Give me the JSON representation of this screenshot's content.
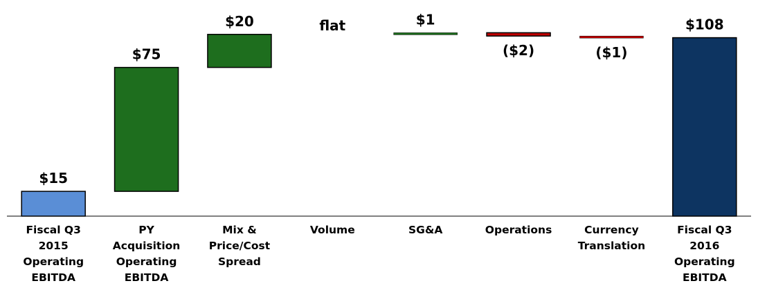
{
  "chart_data": {
    "type": "waterfall",
    "categories": [
      "Fiscal Q3\n2015\nOperating\nEBITDA",
      "PY\nAcquisition\nOperating\nEBITDA",
      "Mix &\nPrice/Cost\nSpread",
      "Volume",
      "SG&A",
      "Operations",
      "Currency\nTranslation",
      "Fiscal Q3\n2016\nOperating\nEBITDA"
    ],
    "values": [
      15,
      75,
      20,
      0,
      1,
      -2,
      -1,
      108
    ],
    "value_labels": [
      "$15",
      "$75",
      "$20",
      "flat",
      "$1",
      "($2)",
      "($1)",
      "$108"
    ],
    "totals": [
      0,
      7
    ],
    "colors": [
      "#5a8ed6",
      "#1e6e1e",
      "#1e6e1e",
      "#1e6e1e",
      "#1e6e1e",
      "#c00000",
      "#c00000",
      "#0d3461"
    ],
    "ylim": [
      0,
      112
    ]
  }
}
